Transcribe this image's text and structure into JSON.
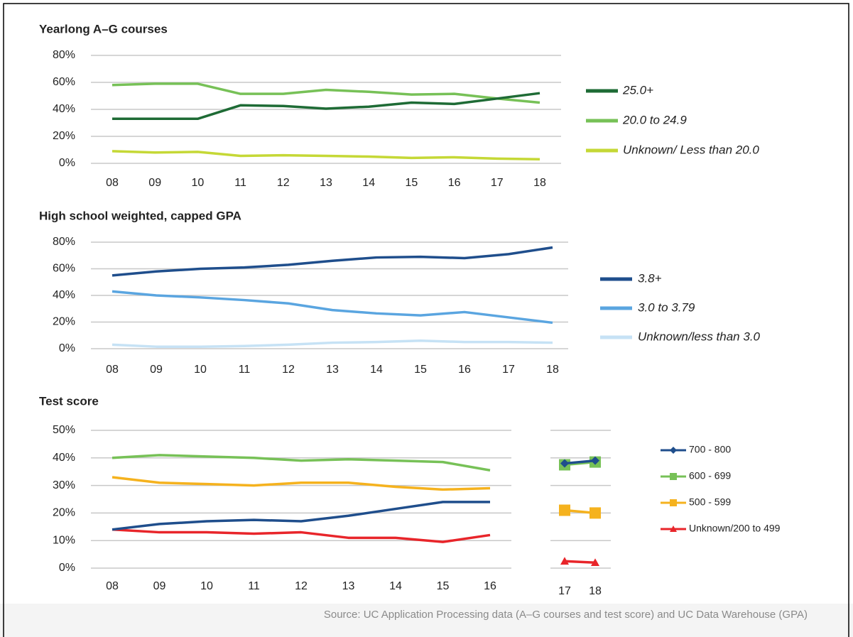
{
  "chart_data": [
    {
      "type": "line",
      "title": "Yearlong A–G courses",
      "categories": [
        "08",
        "09",
        "10",
        "11",
        "12",
        "13",
        "14",
        "15",
        "16",
        "17",
        "18"
      ],
      "ylim": [
        0,
        80
      ],
      "yticks": [
        {
          "value": 0,
          "label": "0%"
        },
        {
          "value": 20,
          "label": "20%"
        },
        {
          "value": 40,
          "label": "40%"
        },
        {
          "value": 60,
          "label": "60%"
        },
        {
          "value": 80,
          "label": "80%"
        }
      ],
      "grid": true,
      "series": [
        {
          "name": "25.0+",
          "color": "#1e6b35",
          "values": [
            33,
            33,
            33,
            43,
            42.5,
            40.5,
            42,
            45,
            44,
            48,
            52
          ]
        },
        {
          "name": "20.0 to 24.9",
          "color": "#77c157",
          "values": [
            58,
            59,
            59,
            51.5,
            51.5,
            54.5,
            53,
            51,
            51.5,
            48,
            45
          ]
        },
        {
          "name": "Unknown/ Less than 20.0",
          "color": "#c5d836",
          "values": [
            9,
            8,
            8.5,
            5.5,
            6,
            5.5,
            5,
            4,
            4.5,
            3.5,
            3
          ]
        }
      ]
    },
    {
      "type": "line",
      "title": "High school weighted, capped GPA",
      "categories": [
        "08",
        "09",
        "10",
        "11",
        "12",
        "13",
        "14",
        "15",
        "16",
        "17",
        "18"
      ],
      "ylim": [
        0,
        80
      ],
      "yticks": [
        {
          "value": 0,
          "label": "0%"
        },
        {
          "value": 20,
          "label": "20%"
        },
        {
          "value": 40,
          "label": "40%"
        },
        {
          "value": 60,
          "label": "60%"
        },
        {
          "value": 80,
          "label": "80%"
        }
      ],
      "grid": true,
      "series": [
        {
          "name": "3.8+",
          "color": "#1f4e8c",
          "values": [
            55,
            58,
            60,
            61,
            63,
            66,
            68.5,
            69,
            68,
            71,
            76
          ]
        },
        {
          "name": "3.0 to 3.79",
          "color": "#5aa5e0",
          "values": [
            43,
            40,
            38.5,
            36.5,
            34,
            29,
            26.5,
            25,
            27.5,
            23.5,
            19.5
          ]
        },
        {
          "name": "Unknown/less than 3.0",
          "color": "#c6e2f5",
          "values": [
            3,
            1.5,
            1.5,
            2,
            3,
            4.5,
            5,
            6,
            5,
            5,
            4.5
          ]
        }
      ]
    },
    {
      "type": "line",
      "title": "Test score",
      "categories": [
        [
          "08",
          "09",
          "10",
          "11",
          "12",
          "13",
          "14",
          "15",
          "16"
        ],
        [
          "17",
          "18"
        ]
      ],
      "ylim": [
        0,
        50
      ],
      "yticks": [
        {
          "value": 0,
          "label": "0%"
        },
        {
          "value": 10,
          "label": "10%"
        },
        {
          "value": 20,
          "label": "20%"
        },
        {
          "value": 30,
          "label": "30%"
        },
        {
          "value": 40,
          "label": "40%"
        },
        {
          "value": 50,
          "label": "50%"
        }
      ],
      "grid": true,
      "series": [
        {
          "name": "700 - 800",
          "color": "#1f4e8c",
          "marker": "diamond",
          "values": [
            [
              14,
              16,
              17,
              17.5,
              17,
              19,
              21.5,
              24,
              24
            ],
            [
              38,
              39
            ]
          ]
        },
        {
          "name": "600 - 699",
          "color": "#77c157",
          "marker": "square",
          "values": [
            [
              40,
              41,
              40.5,
              40,
              39,
              39.5,
              39,
              38.5,
              35.5
            ],
            [
              37.5,
              38.5
            ]
          ]
        },
        {
          "name": "500 - 599",
          "color": "#f5b21e",
          "marker": "square",
          "values": [
            [
              33,
              31,
              30.5,
              30,
              31,
              31,
              29.5,
              28.5,
              29
            ],
            [
              21,
              20
            ]
          ]
        },
        {
          "name": "Unknown/200 to 499",
          "color": "#e8252a",
          "marker": "triangle",
          "values": [
            [
              14,
              13,
              13,
              12.5,
              13,
              11,
              11,
              9.5,
              12
            ],
            [
              2.5,
              2
            ]
          ]
        }
      ]
    }
  ],
  "source": "Source: UC Application Processing data (A–G courses and test score) and UC Data Warehouse (GPA)"
}
